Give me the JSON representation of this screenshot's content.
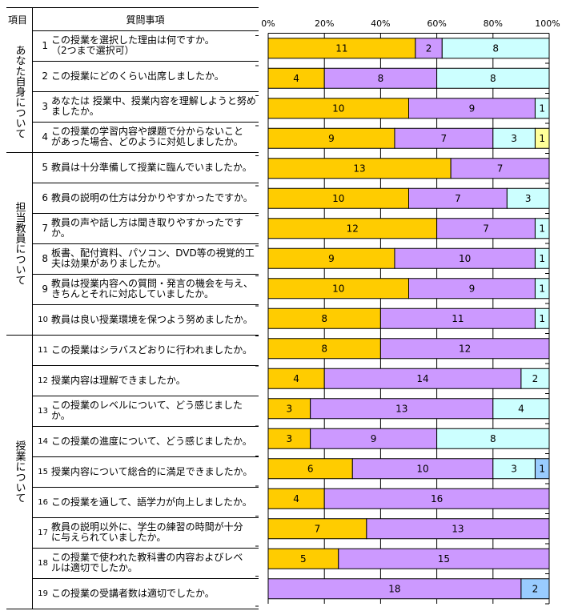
{
  "table": {
    "header_category": "項目",
    "header_question": "質問事項",
    "groups": [
      {
        "label": "あなた自身について",
        "start": 0,
        "count": 4
      },
      {
        "label": "担当教員について",
        "start": 4,
        "count": 6
      },
      {
        "label": "授業について",
        "start": 10,
        "count": 9
      }
    ],
    "questions": [
      {
        "num": "1",
        "text": "この授業を選択した理由は何ですか。\n（2つまで選択可）"
      },
      {
        "num": "2",
        "text": " この授業にどのくらい出席しましたか。"
      },
      {
        "num": "3",
        "text": "あなたは 授業中、授業内容を理解しようと努め\nましたか。"
      },
      {
        "num": "4",
        "text": "この授業の学習内容や課題で分からないこと\nがあった場合、どのように対処しましたか。"
      },
      {
        "num": "5",
        "text": "教員は十分準備して授業に臨んでいましたか。"
      },
      {
        "num": "6",
        "text": "教員の説明の仕方は分かりやすかったですか。"
      },
      {
        "num": "7",
        "text": "教員の声や話し方は聞き取りやすかったですか。"
      },
      {
        "num": "8",
        "text": "板書、配付資料、パソコン、DVD等の視覚的工\n夫は効果がありましたか。"
      },
      {
        "num": "9",
        "text": "教員は授業内容への質問・発言の機会を与え、\nきちんとそれに対応していましたか。"
      },
      {
        "num": "10",
        "text": "教員は良い授業環境を保つよう努めましたか。"
      },
      {
        "num": "11",
        "text": "この授業はシラバスどおりに行われましたか。"
      },
      {
        "num": "12",
        "text": "授業内容は理解できましたか。"
      },
      {
        "num": "13",
        "text": "この授業のレベルについて、どう感じましたか。"
      },
      {
        "num": "14",
        "text": "この授業の進度について、どう感じましたか。"
      },
      {
        "num": "15",
        "text": "授業内容について総合的に満足できましたか。"
      },
      {
        "num": "16",
        "text": "この授業を通して、語学力が向上しましたか。"
      },
      {
        "num": "17",
        "text": "教員の説明以外に、学生の練習の時間が十分\nに与えられていましたか。"
      },
      {
        "num": "18",
        "text": "この授業で使われた教科書の内容およびレベ\nルは適切でしたか。"
      },
      {
        "num": "19",
        "text": "この授業の受講者数は適切でしたか。"
      }
    ]
  },
  "chart_data": {
    "type": "bar",
    "orientation": "horizontal",
    "stacked": "percent",
    "categories": [
      "1",
      "2",
      "3",
      "4",
      "5",
      "6",
      "7",
      "8",
      "9",
      "10",
      "11",
      "12",
      "13",
      "14",
      "15",
      "16",
      "17",
      "18",
      "19"
    ],
    "x_ticks": [
      "0%",
      "20%",
      "40%",
      "60%",
      "80%",
      "100%"
    ],
    "xlim": [
      0,
      100
    ],
    "grid": true,
    "series_colors": [
      "#FFCC00",
      "#CC99FF",
      "#CCFFFF",
      "#FFFF99",
      "#99CCFF"
    ],
    "series": [
      {
        "name": "s1",
        "values": [
          11,
          4,
          10,
          9,
          13,
          10,
          12,
          9,
          10,
          8,
          8,
          4,
          3,
          3,
          6,
          4,
          7,
          5,
          0
        ]
      },
      {
        "name": "s2",
        "values": [
          2,
          8,
          9,
          7,
          7,
          7,
          7,
          10,
          9,
          11,
          12,
          14,
          13,
          9,
          10,
          16,
          13,
          15,
          18
        ]
      },
      {
        "name": "s3",
        "values": [
          8,
          8,
          1,
          3,
          0,
          3,
          1,
          1,
          1,
          1,
          0,
          2,
          4,
          8,
          3,
          0,
          0,
          0,
          0
        ]
      },
      {
        "name": "s4",
        "values": [
          0,
          0,
          0,
          1,
          0,
          0,
          0,
          0,
          0,
          0,
          0,
          0,
          0,
          0,
          0,
          0,
          0,
          0,
          0
        ]
      },
      {
        "name": "s5",
        "values": [
          0,
          0,
          0,
          0,
          0,
          0,
          0,
          0,
          0,
          0,
          0,
          0,
          0,
          0,
          1,
          0,
          0,
          0,
          2
        ]
      }
    ]
  }
}
